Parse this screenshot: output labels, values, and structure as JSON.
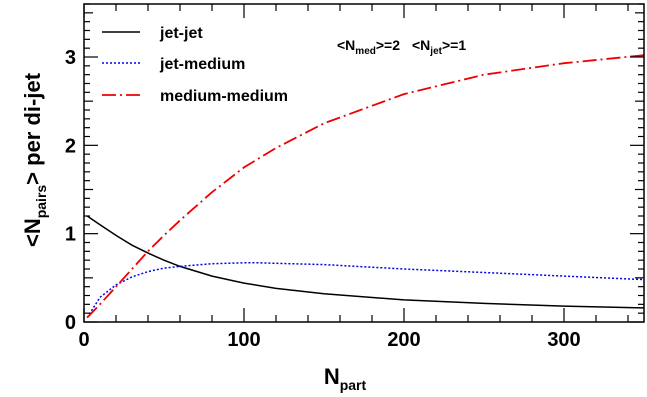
{
  "chart_data": {
    "type": "line",
    "xlabel": {
      "main": "N",
      "sub": "part"
    },
    "ylabel": {
      "pre": "<N",
      "sub": "pairs",
      "post": "> per di-jet"
    },
    "xlim": [
      0,
      350
    ],
    "ylim": [
      0,
      3.6
    ],
    "x_ticks": [
      0,
      100,
      200,
      300
    ],
    "y_ticks": [
      0,
      1,
      2,
      3
    ],
    "annotation": [
      {
        "pre": "<N",
        "sub": "med",
        "post": ">=2"
      },
      {
        "pre": "<N",
        "sub": "jet",
        "post": ">=1"
      }
    ],
    "legend_position": "top-left",
    "grid": false,
    "series": [
      {
        "name": "jet-jet",
        "color": "#000000",
        "dash": "solid",
        "x": [
          2,
          10,
          20,
          30,
          40,
          50,
          60,
          80,
          100,
          120,
          150,
          200,
          250,
          300,
          350
        ],
        "y": [
          1.2,
          1.1,
          0.98,
          0.87,
          0.78,
          0.7,
          0.63,
          0.52,
          0.44,
          0.38,
          0.32,
          0.25,
          0.21,
          0.18,
          0.16
        ]
      },
      {
        "name": "jet-medium",
        "color": "#0000ee",
        "dash": "dotted",
        "x": [
          2,
          10,
          20,
          30,
          40,
          50,
          60,
          80,
          100,
          110,
          120,
          150,
          200,
          250,
          300,
          350
        ],
        "y": [
          0.05,
          0.28,
          0.42,
          0.51,
          0.57,
          0.61,
          0.63,
          0.66,
          0.67,
          0.67,
          0.665,
          0.65,
          0.6,
          0.56,
          0.52,
          0.48
        ]
      },
      {
        "name": "medium-medium",
        "color": "#ee0000",
        "dash": "longdash",
        "x": [
          2,
          10,
          20,
          30,
          40,
          50,
          60,
          80,
          100,
          120,
          150,
          200,
          250,
          300,
          350
        ],
        "y": [
          0.05,
          0.2,
          0.4,
          0.6,
          0.8,
          0.98,
          1.15,
          1.47,
          1.75,
          1.97,
          2.25,
          2.58,
          2.8,
          2.93,
          3.02
        ]
      }
    ]
  }
}
